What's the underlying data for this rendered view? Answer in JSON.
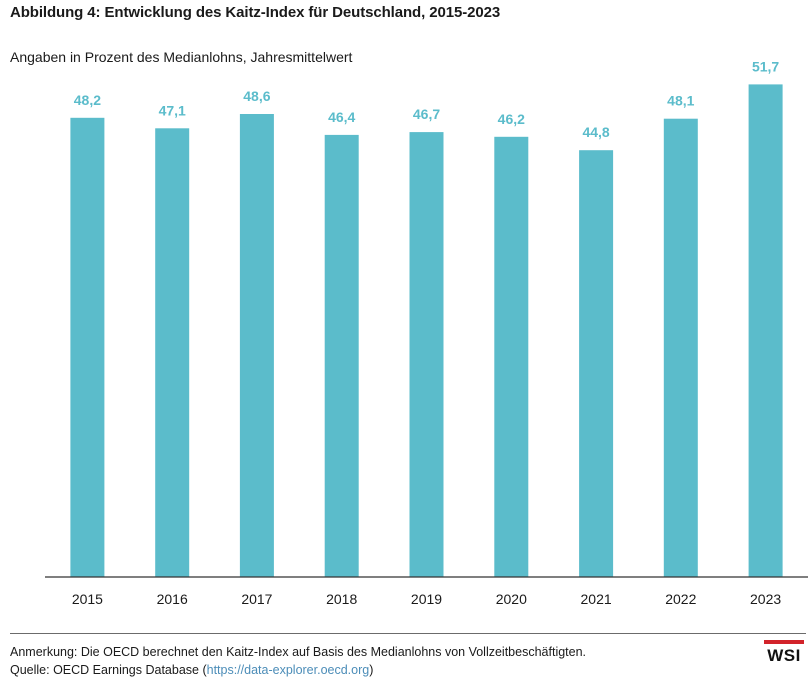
{
  "title": "Abbildung 4: Entwicklung des Kaitz-Index für Deutschland, 2015-2023",
  "subtitle": "Angaben in Prozent des Medianlohns, Jahresmittelwert",
  "note": "Anmerkung: Die OECD berechnet den Kaitz-Index auf Basis des Medianlohns von Vollzeitbeschäftigten.",
  "source_prefix": "Quelle: OECD Earnings Database (",
  "source_url": "https://data-explorer.oecd.org",
  "source_suffix": ")",
  "logo_text": "WSI",
  "colors": {
    "bar": "#5bbccb",
    "label": "#5bbccb",
    "axis": "#333333",
    "logo_accent": "#d2232a"
  },
  "chart_data": {
    "type": "bar",
    "categories": [
      "2015",
      "2016",
      "2017",
      "2018",
      "2019",
      "2020",
      "2021",
      "2022",
      "2023"
    ],
    "values": [
      48.2,
      47.1,
      48.6,
      46.4,
      46.7,
      46.2,
      44.8,
      48.1,
      51.7
    ],
    "value_labels": [
      "48,2",
      "47,1",
      "48,6",
      "46,4",
      "46,7",
      "46,2",
      "44,8",
      "48,1",
      "51,7"
    ],
    "title": "Abbildung 4: Entwicklung des Kaitz-Index für Deutschland, 2015-2023",
    "subtitle": "Angaben in Prozent des Medianlohns, Jahresmittelwert",
    "xlabel": "",
    "ylabel": "",
    "ylim": [
      0,
      55
    ],
    "grid": false,
    "legend": "none"
  }
}
